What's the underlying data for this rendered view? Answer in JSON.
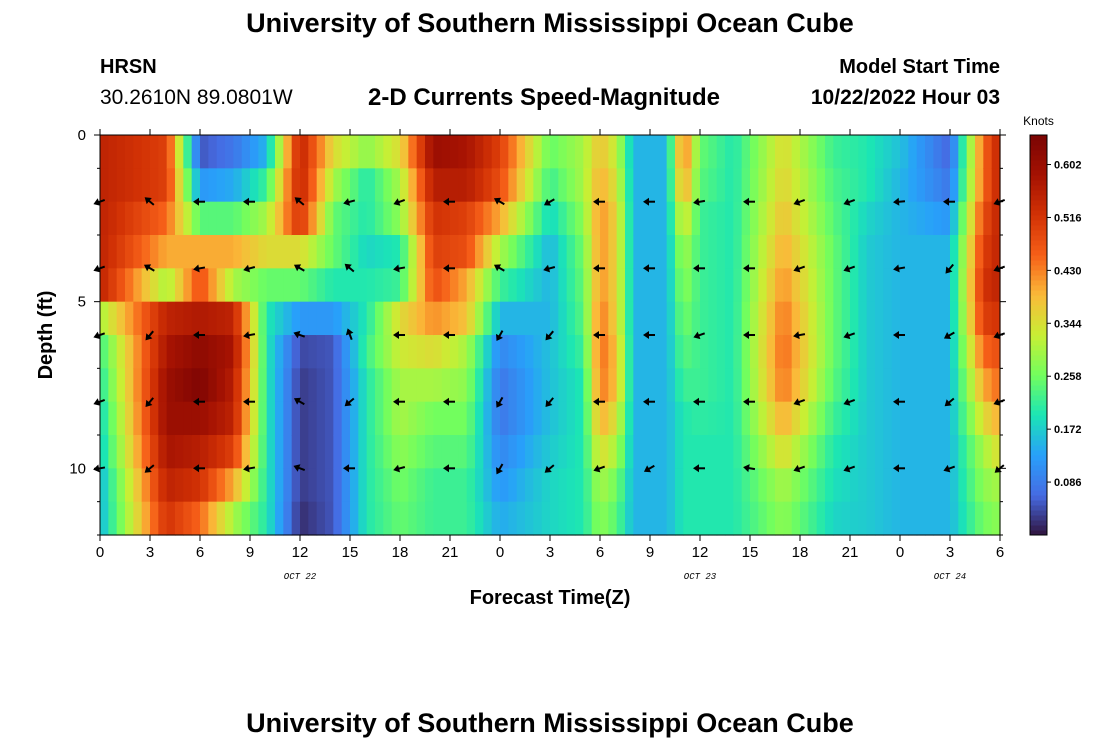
{
  "header": {
    "title": "University of Southern Mississippi Ocean Cube",
    "station": "HRSN",
    "coordinates": "30.2610N  89.0801W",
    "subtitle": "2-D Currents Speed-Magnitude",
    "model_start_label": "Model Start Time",
    "model_start_value": "10/22/2022 Hour 03"
  },
  "footer": {
    "title": "University of Southern Mississippi Ocean Cube"
  },
  "chart_data": {
    "type": "heatmap",
    "title": "2-D Currents Speed-Magnitude",
    "xlabel": "Forecast Time(Z)",
    "ylabel": "Depth (ft)",
    "x_tick_labels": [
      "0",
      "3",
      "6",
      "9",
      "12",
      "15",
      "18",
      "21",
      "0",
      "3",
      "6",
      "9",
      "12",
      "15",
      "18",
      "21",
      "0",
      "3",
      "6"
    ],
    "date_labels": [
      {
        "label": "OCT 22",
        "tick_index": 4
      },
      {
        "label": "OCT 23",
        "tick_index": 12
      },
      {
        "label": "OCT 24",
        "tick_index": 17
      }
    ],
    "y_tick_labels": [
      {
        "label": "0",
        "depth": 0
      },
      {
        "label": "5",
        "depth": 5
      },
      {
        "label": "10",
        "depth": 10
      }
    ],
    "x_range_hours": [
      0,
      54
    ],
    "depth_range_ft": [
      0,
      12
    ],
    "depth_layers": [
      0,
      1,
      2,
      3,
      4,
      5,
      6,
      7,
      8,
      9,
      10,
      11
    ],
    "time_profiles": [
      [
        0,
        0.55,
        0.55,
        0.55,
        0.55,
        0.55,
        0.3,
        0.22,
        0.2,
        0.18,
        0.17,
        0.15,
        0.15
      ],
      [
        4,
        0.5,
        0.5,
        0.45,
        0.4,
        0.3,
        0.55,
        0.58,
        0.6,
        0.6,
        0.58,
        0.55,
        0.52
      ],
      [
        6,
        0.05,
        0.12,
        0.24,
        0.4,
        0.48,
        0.57,
        0.62,
        0.64,
        0.6,
        0.56,
        0.52,
        0.45
      ],
      [
        8,
        0.08,
        0.14,
        0.24,
        0.4,
        0.3,
        0.55,
        0.58,
        0.56,
        0.55,
        0.5,
        0.4,
        0.3
      ],
      [
        10,
        0.15,
        0.22,
        0.3,
        0.35,
        0.25,
        0.2,
        0.2,
        0.2,
        0.2,
        0.2,
        0.2,
        0.2
      ],
      [
        12,
        0.55,
        0.55,
        0.52,
        0.35,
        0.25,
        0.12,
        0.04,
        0.03,
        0.03,
        0.03,
        0.03,
        0.02
      ],
      [
        14,
        0.35,
        0.3,
        0.25,
        0.25,
        0.2,
        0.12,
        0.05,
        0.05,
        0.05,
        0.05,
        0.05,
        0.05
      ],
      [
        16,
        0.28,
        0.2,
        0.2,
        0.18,
        0.2,
        0.2,
        0.22,
        0.2,
        0.2,
        0.2,
        0.2,
        0.2
      ],
      [
        18,
        0.35,
        0.3,
        0.28,
        0.2,
        0.22,
        0.35,
        0.33,
        0.3,
        0.3,
        0.28,
        0.26,
        0.25
      ],
      [
        20,
        0.6,
        0.56,
        0.52,
        0.5,
        0.48,
        0.42,
        0.35,
        0.3,
        0.26,
        0.24,
        0.22,
        0.22
      ],
      [
        22,
        0.58,
        0.56,
        0.5,
        0.48,
        0.4,
        0.38,
        0.3,
        0.28,
        0.26,
        0.24,
        0.22,
        0.22
      ],
      [
        24,
        0.5,
        0.48,
        0.4,
        0.3,
        0.22,
        0.15,
        0.1,
        0.08,
        0.08,
        0.1,
        0.12,
        0.14
      ],
      [
        27,
        0.25,
        0.22,
        0.18,
        0.15,
        0.15,
        0.15,
        0.16,
        0.16,
        0.16,
        0.17,
        0.18,
        0.18
      ],
      [
        29,
        0.3,
        0.3,
        0.28,
        0.26,
        0.25,
        0.24,
        0.22,
        0.2,
        0.2,
        0.2,
        0.2,
        0.2
      ],
      [
        30,
        0.38,
        0.4,
        0.42,
        0.42,
        0.42,
        0.44,
        0.45,
        0.44,
        0.4,
        0.35,
        0.3,
        0.28
      ],
      [
        31,
        0.32,
        0.34,
        0.36,
        0.36,
        0.36,
        0.36,
        0.38,
        0.38,
        0.34,
        0.3,
        0.26,
        0.24
      ],
      [
        32,
        0.15,
        0.15,
        0.15,
        0.15,
        0.15,
        0.15,
        0.15,
        0.15,
        0.15,
        0.15,
        0.15,
        0.15
      ],
      [
        34,
        0.15,
        0.15,
        0.15,
        0.15,
        0.15,
        0.15,
        0.15,
        0.15,
        0.15,
        0.15,
        0.15,
        0.15
      ],
      [
        35,
        0.45,
        0.42,
        0.35,
        0.3,
        0.28,
        0.26,
        0.24,
        0.22,
        0.2,
        0.2,
        0.2,
        0.2
      ],
      [
        36,
        0.25,
        0.24,
        0.22,
        0.22,
        0.22,
        0.22,
        0.22,
        0.22,
        0.21,
        0.2,
        0.2,
        0.2
      ],
      [
        38,
        0.2,
        0.2,
        0.2,
        0.2,
        0.2,
        0.2,
        0.2,
        0.2,
        0.2,
        0.2,
        0.2,
        0.2
      ],
      [
        41,
        0.35,
        0.36,
        0.38,
        0.4,
        0.42,
        0.44,
        0.45,
        0.44,
        0.4,
        0.35,
        0.3,
        0.28
      ],
      [
        44,
        0.22,
        0.23,
        0.24,
        0.25,
        0.25,
        0.25,
        0.25,
        0.24,
        0.22,
        0.2,
        0.19,
        0.18
      ],
      [
        46,
        0.2,
        0.2,
        0.18,
        0.17,
        0.17,
        0.17,
        0.17,
        0.17,
        0.17,
        0.17,
        0.17,
        0.17
      ],
      [
        48,
        0.16,
        0.15,
        0.15,
        0.15,
        0.15,
        0.15,
        0.15,
        0.15,
        0.15,
        0.15,
        0.15,
        0.15
      ],
      [
        51,
        0.06,
        0.08,
        0.12,
        0.15,
        0.15,
        0.15,
        0.15,
        0.15,
        0.15,
        0.15,
        0.15,
        0.15
      ],
      [
        53,
        0.45,
        0.45,
        0.48,
        0.5,
        0.52,
        0.5,
        0.45,
        0.4,
        0.35,
        0.3,
        0.28,
        0.26
      ],
      [
        54,
        0.55,
        0.55,
        0.55,
        0.55,
        0.55,
        0.52,
        0.48,
        0.45,
        0.4,
        0.35,
        0.3,
        0.28
      ]
    ],
    "arrow_times": [
      0,
      3,
      6,
      9,
      12,
      15,
      18,
      21,
      24,
      27,
      30,
      33,
      36,
      39,
      42,
      45,
      48,
      51,
      54
    ],
    "arrow_depths": [
      2,
      4,
      6,
      8,
      10
    ],
    "arrow_directions_deg": [
      [
        200,
        140,
        180,
        180,
        140,
        195,
        200,
        180,
        150,
        210,
        180,
        180,
        190,
        180,
        200,
        200,
        185,
        180,
        200
      ],
      [
        200,
        150,
        190,
        195,
        150,
        140,
        190,
        180,
        150,
        195,
        180,
        180,
        180,
        180,
        200,
        200,
        190,
        230,
        200
      ],
      [
        200,
        230,
        180,
        190,
        160,
        110,
        180,
        180,
        240,
        230,
        180,
        180,
        200,
        180,
        190,
        200,
        180,
        210,
        200
      ],
      [
        200,
        230,
        180,
        180,
        150,
        220,
        180,
        180,
        240,
        230,
        180,
        180,
        180,
        180,
        200,
        200,
        180,
        220,
        200
      ],
      [
        190,
        220,
        180,
        190,
        160,
        180,
        195,
        180,
        240,
        220,
        200,
        210,
        180,
        170,
        200,
        200,
        180,
        200,
        220
      ]
    ],
    "colorbar": {
      "label": "Knots",
      "range": [
        0.0,
        0.65
      ],
      "ticks": [
        "0.086",
        "0.172",
        "0.258",
        "0.344",
        "0.430",
        "0.516",
        "0.602"
      ]
    }
  }
}
